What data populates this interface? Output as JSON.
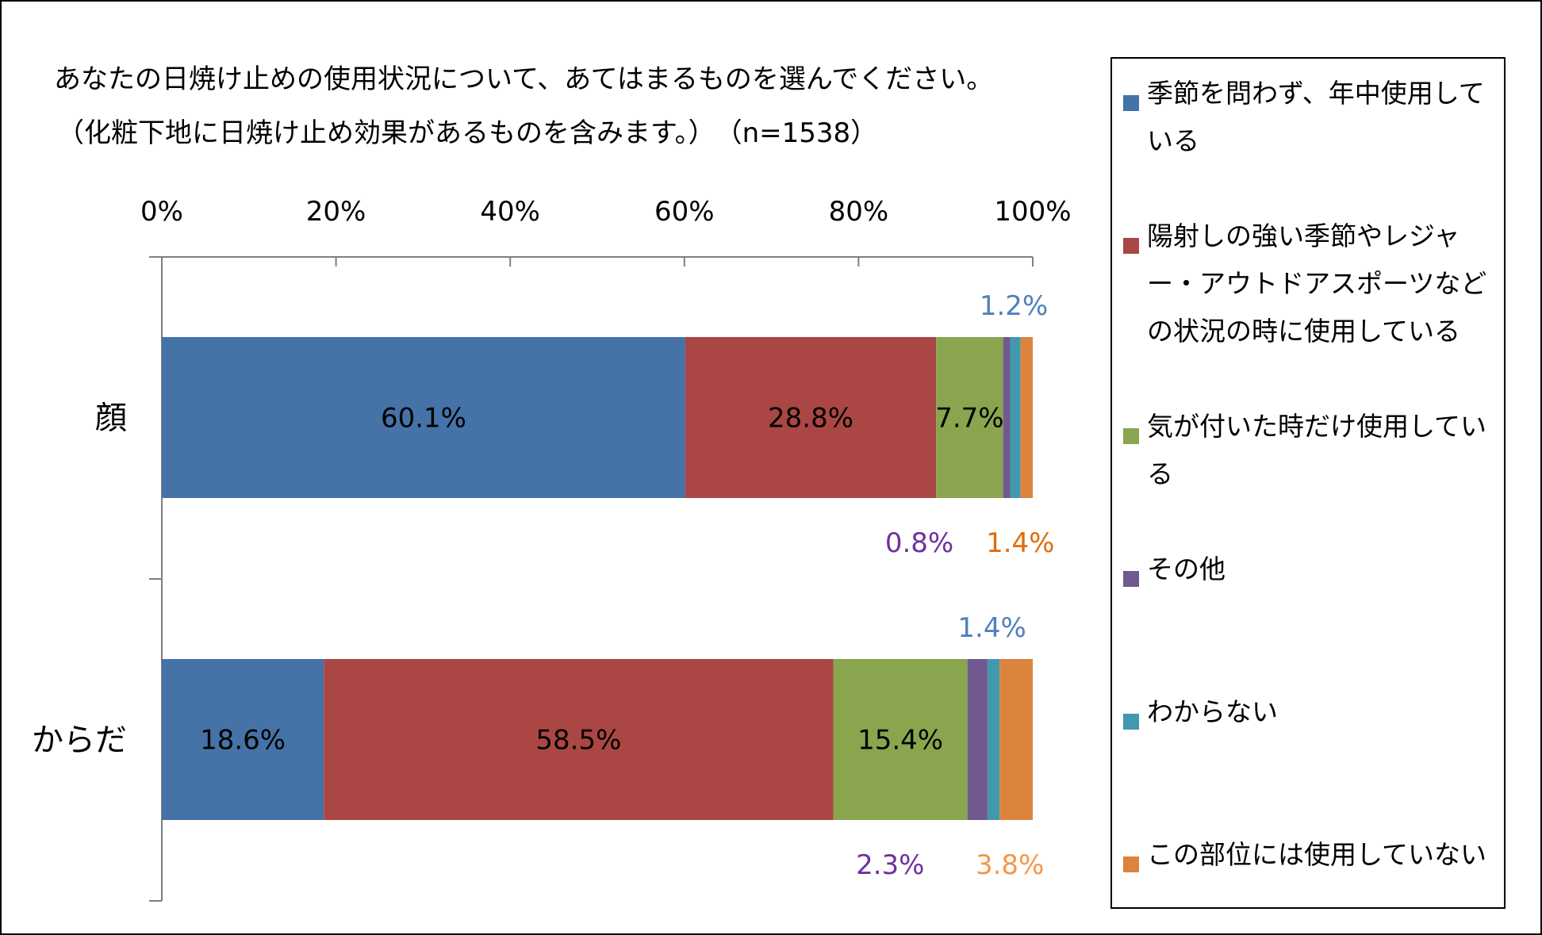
{
  "title": {
    "line1": "あなたの日焼け止めの使用状況について、あてはまるものを選んでください。",
    "line2": "（化粧下地に日焼け止め効果があるものを含みます。）　（n=1538）"
  },
  "chart_data": {
    "type": "bar",
    "orientation": "horizontal",
    "stacked": true,
    "percent_stacked": true,
    "categories": [
      "顔",
      "からだ"
    ],
    "x_ticks": [
      "0%",
      "20%",
      "40%",
      "60%",
      "80%",
      "100%"
    ],
    "xlim": [
      0,
      100
    ],
    "legend_position": "right",
    "series": [
      {
        "name": "季節を問わず、年中使用している",
        "color": "#4572A7",
        "values": [
          60.1,
          18.6
        ],
        "labels": [
          "60.1%",
          "18.6%"
        ]
      },
      {
        "name": "陽射しの強い季節やレジャー・アウトドアスポーツなどの状況の時に使用している",
        "color": "#AA4643",
        "values": [
          28.8,
          58.5
        ],
        "labels": [
          "28.8%",
          "58.5%"
        ]
      },
      {
        "name": "気が付いた時だけ使用している",
        "color": "#89A54E",
        "values": [
          7.7,
          15.4
        ],
        "labels": [
          "7.7%",
          "15.4%"
        ]
      },
      {
        "name": "その他",
        "color": "#71588F",
        "values": [
          0.8,
          2.3
        ],
        "labels": [
          "0.8%",
          "2.3%"
        ]
      },
      {
        "name": "わからない",
        "color": "#4198AF",
        "values": [
          1.2,
          1.4
        ],
        "labels": [
          "1.2%",
          "1.4%"
        ]
      },
      {
        "name": "この部位には使用していない",
        "color": "#DB843D",
        "values": [
          1.4,
          3.8
        ],
        "labels": [
          "1.4%",
          "3.8%"
        ]
      }
    ],
    "label_colors": {
      "inside": "#000000",
      "other": "#7030A0",
      "unknown": "#4F81BD",
      "not_used": "#E36C09",
      "not_used_body": "#F79646"
    }
  }
}
